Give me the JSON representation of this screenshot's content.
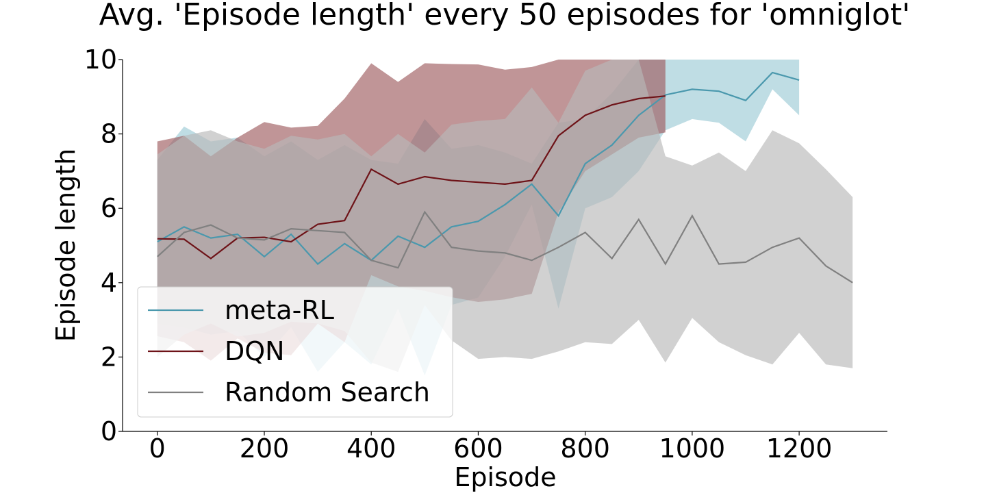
{
  "chart_data": {
    "type": "line",
    "title": "Avg. 'Episode length' every 50 episodes for 'omniglot'",
    "xlabel": "Episode",
    "ylabel": "Episode length",
    "xlim": [
      -65,
      1365
    ],
    "ylim": [
      0,
      10
    ],
    "xticks": [
      0,
      200,
      400,
      600,
      800,
      1000,
      1200
    ],
    "yticks": [
      0,
      2,
      4,
      6,
      8,
      10
    ],
    "grid": false,
    "legend_position": "lower-left",
    "series": [
      {
        "name": "meta-RL",
        "color": "#4a98ad",
        "band_color": "#9ccbd6",
        "x": [
          0,
          50,
          100,
          150,
          200,
          250,
          300,
          350,
          400,
          450,
          500,
          550,
          600,
          650,
          700,
          750,
          800,
          850,
          900,
          950,
          1000,
          1050,
          1100,
          1150,
          1200
        ],
        "mean": [
          5.1,
          5.5,
          5.2,
          5.3,
          4.7,
          5.3,
          4.5,
          5.05,
          4.6,
          5.25,
          4.95,
          5.5,
          5.65,
          6.1,
          6.65,
          5.8,
          7.2,
          7.7,
          8.5,
          9.05,
          9.2,
          9.15,
          8.9,
          9.65,
          9.45
        ],
        "upper": [
          7.3,
          8.2,
          7.8,
          7.9,
          7.4,
          7.8,
          7.3,
          7.7,
          7.3,
          7.2,
          8.4,
          7.6,
          7.7,
          7.5,
          7.2,
          8.3,
          8.4,
          9.1,
          10.0,
          10.0,
          10.0,
          10.0,
          10.0,
          10.0,
          10.0
        ],
        "lower": [
          2.9,
          2.8,
          2.6,
          2.7,
          2.0,
          2.8,
          1.6,
          2.4,
          1.8,
          3.3,
          1.5,
          3.4,
          3.6,
          4.7,
          6.1,
          3.3,
          6.0,
          6.3,
          7.0,
          8.1,
          8.4,
          8.3,
          7.8,
          9.2,
          8.5
        ]
      },
      {
        "name": "DQN",
        "color": "#6e1318",
        "band_color": "#9e5c5f",
        "x": [
          0,
          50,
          100,
          150,
          200,
          250,
          300,
          350,
          400,
          450,
          500,
          550,
          600,
          650,
          700,
          750,
          800,
          850,
          900,
          950
        ],
        "mean": [
          5.18,
          5.17,
          4.65,
          5.2,
          5.22,
          5.1,
          5.57,
          5.67,
          7.05,
          6.65,
          6.85,
          6.75,
          6.7,
          6.65,
          6.75,
          7.95,
          8.5,
          8.78,
          8.95,
          9.02
        ],
        "upper": [
          7.8,
          7.95,
          7.4,
          7.9,
          8.32,
          8.17,
          8.22,
          8.95,
          9.9,
          9.4,
          9.9,
          9.88,
          9.87,
          9.73,
          9.8,
          10.0,
          10.0,
          10.0,
          10.0,
          10.0
        ],
        "lower": [
          2.56,
          2.4,
          1.9,
          2.5,
          2.12,
          2.05,
          2.9,
          2.4,
          4.2,
          3.9,
          3.78,
          3.61,
          3.48,
          3.55,
          3.7,
          5.9,
          7.0,
          7.45,
          7.9,
          8.04
        ]
      },
      {
        "name": "Random Search",
        "color": "#808080",
        "band_color": "#b8b8b8",
        "x": [
          0,
          50,
          100,
          150,
          200,
          250,
          300,
          350,
          400,
          450,
          500,
          550,
          600,
          650,
          700,
          750,
          800,
          850,
          900,
          950,
          1000,
          1050,
          1100,
          1150,
          1200,
          1250,
          1300
        ],
        "mean": [
          4.7,
          5.35,
          5.55,
          5.2,
          5.15,
          5.45,
          5.4,
          5.35,
          4.6,
          4.4,
          5.9,
          4.95,
          4.85,
          4.8,
          4.6,
          4.95,
          5.35,
          4.65,
          5.7,
          4.5,
          5.8,
          4.5,
          4.55,
          4.95,
          5.2,
          4.45,
          4.0
        ],
        "upper": [
          7.45,
          7.95,
          8.1,
          7.8,
          7.6,
          7.95,
          7.85,
          8.0,
          7.4,
          8.0,
          7.5,
          8.25,
          8.35,
          8.4,
          9.25,
          8.3,
          9.7,
          10.0,
          10.0,
          7.4,
          7.15,
          7.5,
          7.0,
          8.1,
          7.75,
          7.05,
          6.3
        ],
        "lower": [
          2.0,
          2.6,
          2.9,
          2.55,
          2.65,
          2.95,
          2.9,
          2.7,
          1.85,
          1.6,
          3.4,
          2.45,
          1.95,
          2.0,
          1.95,
          2.15,
          2.4,
          2.35,
          3.0,
          1.85,
          3.05,
          2.4,
          2.05,
          1.8,
          2.65,
          1.8,
          1.7
        ]
      }
    ]
  }
}
